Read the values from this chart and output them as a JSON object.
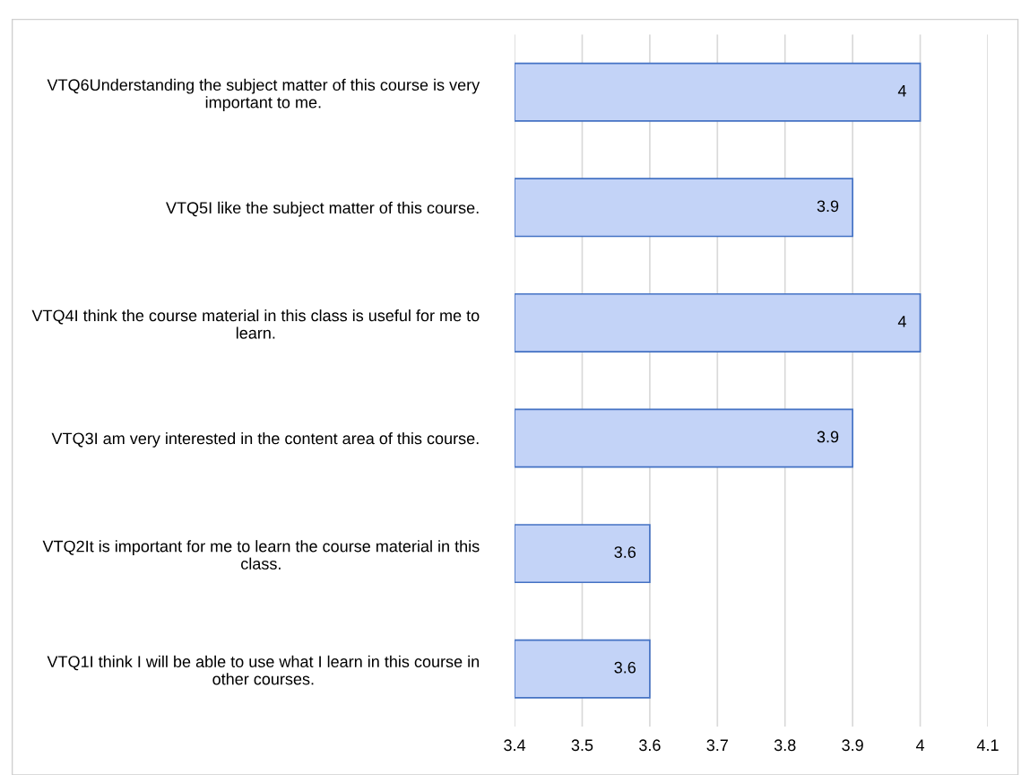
{
  "chart_data": {
    "type": "bar",
    "orientation": "horizontal",
    "categories": [
      "VTQ6Understanding the subject matter of this course is very important to me.",
      "VTQ5I like the subject matter of this course.",
      "VTQ4I think the course material in this class is useful for me to learn.",
      "VTQ3I am very interested in the content area of this course.",
      "VTQ2It is important for me to learn the course material in this class.",
      "VTQ1I think I will be able to use what I learn in this course in other courses."
    ],
    "values": [
      4,
      3.9,
      4,
      3.9,
      3.6,
      3.6
    ],
    "color": "#c3d3f7",
    "xlim": [
      3.4,
      4.1
    ],
    "xticks": [
      3.4,
      3.5,
      3.6,
      3.7,
      3.8,
      3.9,
      4,
      4.1
    ],
    "grid": "x",
    "data_labels": true
  }
}
